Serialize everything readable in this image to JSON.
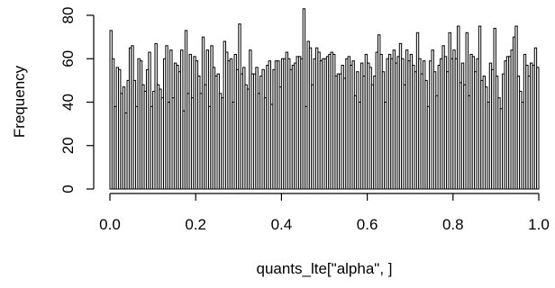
{
  "chart_data": {
    "type": "bar",
    "title": "",
    "xlabel": "quants_lte[\"alpha\", ]",
    "ylabel": "Frequency",
    "xlim": [
      0,
      1
    ],
    "ylim": [
      0,
      80
    ],
    "x_ticks": [
      "0.0",
      "0.2",
      "0.4",
      "0.6",
      "0.8",
      "1.0"
    ],
    "y_ticks": [
      "0",
      "20",
      "40",
      "60",
      "80"
    ],
    "grid": false,
    "bin_width": 0.005,
    "x": [
      0.0025,
      0.0075,
      0.0125,
      0.0175,
      0.0225,
      0.0275,
      0.0325,
      0.0375,
      0.0425,
      0.0475,
      0.0525,
      0.0575,
      0.0625,
      0.0675,
      0.0725,
      0.0775,
      0.0825,
      0.0875,
      0.0925,
      0.0975,
      0.1025,
      0.1075,
      0.1125,
      0.1175,
      0.1225,
      0.1275,
      0.1325,
      0.1375,
      0.1425,
      0.1475,
      0.1525,
      0.1575,
      0.1625,
      0.1675,
      0.1725,
      0.1775,
      0.1825,
      0.1875,
      0.1925,
      0.1975,
      0.2025,
      0.2075,
      0.2125,
      0.2175,
      0.2225,
      0.2275,
      0.2325,
      0.2375,
      0.2425,
      0.2475,
      0.2525,
      0.2575,
      0.2625,
      0.2675,
      0.2725,
      0.2775,
      0.2825,
      0.2875,
      0.2925,
      0.2975,
      0.3025,
      0.3075,
      0.3125,
      0.3175,
      0.3225,
      0.3275,
      0.3325,
      0.3375,
      0.3425,
      0.3475,
      0.3525,
      0.3575,
      0.3625,
      0.3675,
      0.3725,
      0.3775,
      0.3825,
      0.3875,
      0.3925,
      0.3975,
      0.4025,
      0.4075,
      0.4125,
      0.4175,
      0.4225,
      0.4275,
      0.4325,
      0.4375,
      0.4425,
      0.4475,
      0.4525,
      0.4575,
      0.4625,
      0.4675,
      0.4725,
      0.4775,
      0.4825,
      0.4875,
      0.4925,
      0.4975,
      0.5025,
      0.5075,
      0.5125,
      0.5175,
      0.5225,
      0.5275,
      0.5325,
      0.5375,
      0.5425,
      0.5475,
      0.5525,
      0.5575,
      0.5625,
      0.5675,
      0.5725,
      0.5775,
      0.5825,
      0.5875,
      0.5925,
      0.5975,
      0.6025,
      0.6075,
      0.6125,
      0.6175,
      0.6225,
      0.6275,
      0.6325,
      0.6375,
      0.6425,
      0.6475,
      0.6525,
      0.6575,
      0.6625,
      0.6675,
      0.6725,
      0.6775,
      0.6825,
      0.6875,
      0.6925,
      0.6975,
      0.7025,
      0.7075,
      0.7125,
      0.7175,
      0.7225,
      0.7275,
      0.7325,
      0.7375,
      0.7425,
      0.7475,
      0.7525,
      0.7575,
      0.7625,
      0.7675,
      0.7725,
      0.7775,
      0.7825,
      0.7875,
      0.7925,
      0.7975,
      0.8025,
      0.8075,
      0.8125,
      0.8175,
      0.8225,
      0.8275,
      0.8325,
      0.8375,
      0.8425,
      0.8475,
      0.8525,
      0.8575,
      0.8625,
      0.8675,
      0.8725,
      0.8775,
      0.8825,
      0.8875,
      0.8925,
      0.8975,
      0.9025,
      0.9075,
      0.9125,
      0.9175,
      0.9225,
      0.9275,
      0.9325,
      0.9375,
      0.9425,
      0.9475,
      0.9525,
      0.9575,
      0.9625,
      0.9675,
      0.9725,
      0.9775,
      0.9825,
      0.9875,
      0.9925,
      0.9975
    ],
    "values": [
      73,
      60,
      38,
      56,
      55,
      44,
      47,
      35,
      50,
      65,
      66,
      50,
      38,
      60,
      59,
      48,
      45,
      55,
      63,
      38,
      45,
      67,
      48,
      46,
      42,
      60,
      66,
      40,
      64,
      42,
      58,
      57,
      54,
      64,
      36,
      73,
      44,
      62,
      42,
      61,
      59,
      52,
      44,
      70,
      48,
      64,
      38,
      66,
      56,
      52,
      53,
      44,
      42,
      68,
      63,
      59,
      60,
      40,
      62,
      55,
      76,
      53,
      56,
      48,
      46,
      64,
      53,
      53,
      56,
      44,
      52,
      55,
      42,
      57,
      59,
      39,
      55,
      59,
      59,
      47,
      60,
      60,
      63,
      60,
      55,
      57,
      58,
      61,
      61,
      60,
      83,
      38,
      68,
      65,
      48,
      60,
      65,
      63,
      59,
      60,
      60,
      61,
      62,
      63,
      62,
      52,
      53,
      53,
      57,
      51,
      60,
      61,
      57,
      59,
      43,
      54,
      40,
      58,
      52,
      62,
      58,
      56,
      48,
      52,
      63,
      71,
      62,
      54,
      40,
      60,
      62,
      60,
      64,
      58,
      61,
      67,
      60,
      48,
      64,
      59,
      62,
      57,
      54,
      72,
      60,
      53,
      59,
      50,
      38,
      59,
      64,
      54,
      43,
      57,
      60,
      66,
      61,
      54,
      72,
      60,
      64,
      60,
      75,
      49,
      58,
      48,
      72,
      43,
      62,
      61,
      54,
      60,
      75,
      50,
      52,
      47,
      40,
      58,
      55,
      74,
      52,
      42,
      37,
      53,
      59,
      61,
      61,
      64,
      70,
      75,
      52,
      45,
      40,
      62,
      57,
      52,
      58,
      57,
      65,
      56
    ]
  }
}
